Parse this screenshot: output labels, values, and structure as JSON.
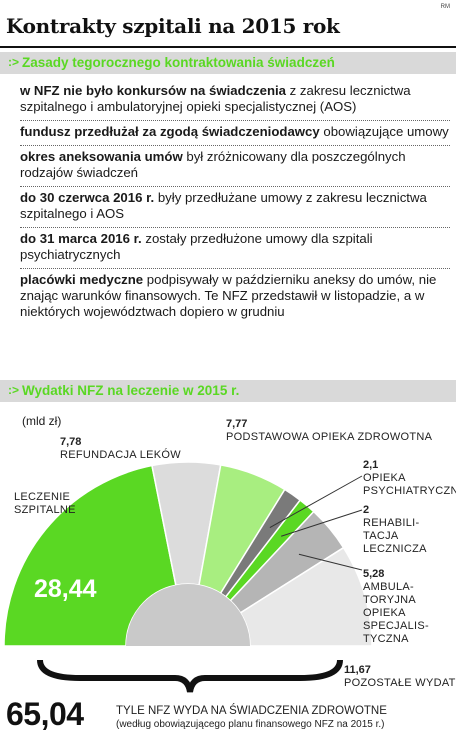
{
  "credit": "RM",
  "title": "Kontrakty szpitali na 2015 rok",
  "section1": {
    "marker": ":>",
    "title": "Zasady tegorocznego kontraktowania świadczeń"
  },
  "rules": [
    {
      "bold": "w NFZ nie było konkursów na świadczenia",
      "text": " z zakresu lecznictwa szpitalnego i ambulatoryjnej opieki specjalistycznej (AOS)"
    },
    {
      "bold": "fundusz przedłużał za zgodą świadczeniodawcy",
      "text": " obowiązujące umowy"
    },
    {
      "bold": "okres aneksowania umów",
      "text": " był zróżnicowany dla poszczególnych rodzajów świadczeń"
    },
    {
      "bold": "do 30 czerwca 2016 r.",
      "text": " były przedłużane umowy z zakresu lecznictwa szpitalnego i AOS"
    },
    {
      "bold": "do 31 marca 2016 r.",
      "text": " zostały przedłużone umowy dla szpitali psychiatrycznych"
    },
    {
      "bold": "placówki medyczne",
      "text": " podpisywały w październiku aneksy do umów, nie znając warunków finansowych. Te NFZ przedstawił w listopadzie, a w niektórych województwach dopiero w grudniu"
    }
  ],
  "section2": {
    "marker": ":>",
    "title": "Wydatki NFZ na leczenie w 2015 r."
  },
  "unit": "(mld zł)",
  "chart_data": {
    "type": "pie",
    "title": "Wydatki NFZ na leczenie w 2015 r.",
    "unit": "(mld zł)",
    "slices": [
      {
        "label": "LECZENIE SZPITALNE",
        "value": 28.44,
        "value_text": "28,44",
        "color": "#5ad823"
      },
      {
        "label": "REFUNDACJA LEKÓW",
        "value": 7.78,
        "value_text": "7,78",
        "color": "#dcdcdc"
      },
      {
        "label": "PODSTAWOWA OPIEKA ZDROWOTNA",
        "value": 7.77,
        "value_text": "7,77",
        "color": "#a8ee80"
      },
      {
        "label": "OPIEKA PSYCHIATRYCZNA",
        "value": 2.1,
        "value_text": "2,1",
        "color": "#7a7a7a"
      },
      {
        "label": "REHABILITACJA LECZNICZA",
        "value": 2,
        "value_text": "2",
        "color": "#5ad823"
      },
      {
        "label": "AMBULATORYJNA OPIEKA SPECJALISTYCZNA",
        "value": 5.28,
        "value_text": "5,28",
        "color": "#b5b5b5"
      },
      {
        "label": "POZOSTAŁE WYDATKI",
        "value": 11.67,
        "value_text": "11,67",
        "color": "#e8e8e8"
      }
    ],
    "total": 65.04
  },
  "labels": {
    "szpitalne": [
      "LECZENIE",
      "SZPITALNE"
    ],
    "leki": [
      "REFUNDACJA LEKÓW"
    ],
    "poz": [
      "PODSTAWOWA OPIEKA ZDROWOTNA"
    ],
    "psych": [
      "OPIEKA",
      "PSYCHIATRYCZNA"
    ],
    "rehab": [
      "REHABILI-",
      "TACJA",
      "LECZNICZA"
    ],
    "aos": [
      "AMBULA-",
      "TORYJNA",
      "OPIEKA",
      "SPECJALIS-",
      "TYCZNA"
    ],
    "pozostale": [
      "POZOSTAŁE WYDATKI"
    ]
  },
  "total": {
    "value": "65,04",
    "caption": "TYLE NFZ WYDA NA ŚWIADCZENIA ZDROWOTNE",
    "sub": "(według obowiązującego planu finansowego NFZ na 2015 r.)"
  }
}
